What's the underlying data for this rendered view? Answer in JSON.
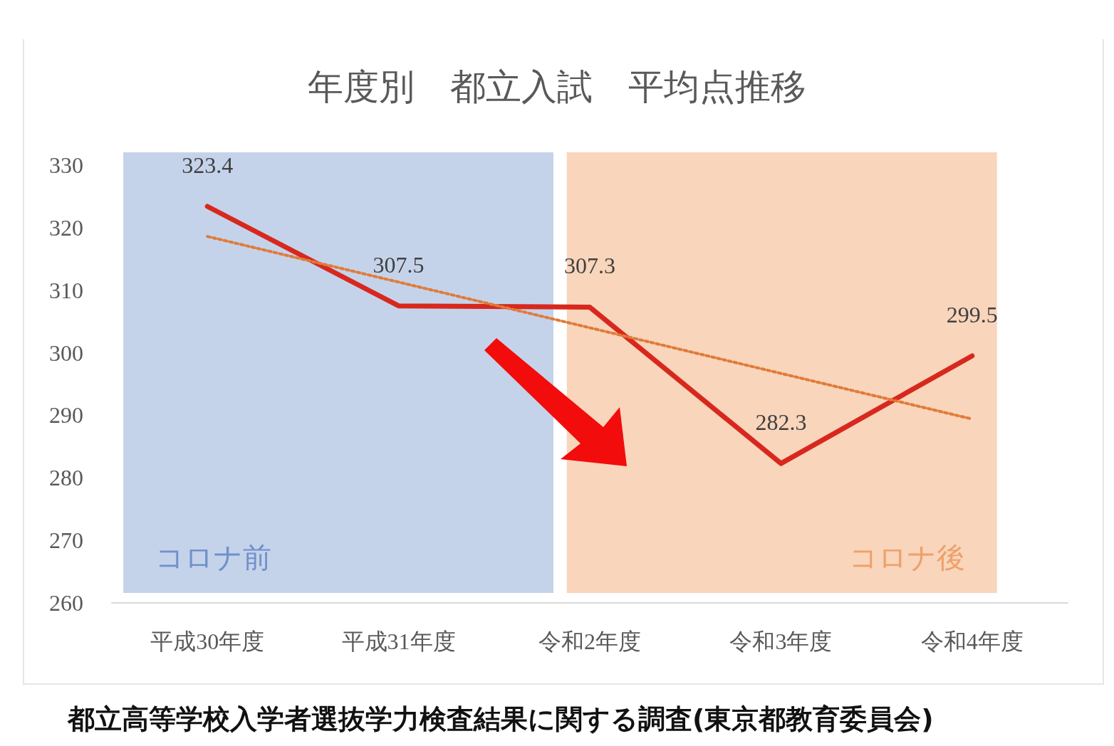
{
  "chart_data": {
    "type": "line",
    "title": "年度別　都立入試　平均点推移",
    "categories": [
      "平成30年度",
      "平成31年度",
      "令和2年度",
      "令和3年度",
      "令和4年度"
    ],
    "series": [
      {
        "color": "#d8281e",
        "values": [
          323.4,
          307.5,
          307.3,
          282.3,
          299.5
        ],
        "value_labels": [
          "323.4",
          "307.5",
          "307.3",
          "282.3",
          "299.5"
        ],
        "line_style": "solid"
      },
      {
        "type": "line",
        "color": "#e07b39",
        "x": [
          "平成30年度",
          "令和4年度"
        ],
        "values": [
          318.6,
          289.4
        ],
        "line_style": "dotted"
      }
    ],
    "ylim": [
      260,
      330
    ],
    "yticks": [
      260,
      270,
      280,
      290,
      300,
      310,
      320,
      330
    ],
    "grid": false,
    "marker": "none",
    "bands": [
      {
        "axis": "x",
        "from": "平成30年度",
        "to": "令和2年度",
        "label": "コロナ前",
        "color": "#c5d3ea"
      },
      {
        "axis": "x",
        "from": "令和2年度",
        "to": "令和4年度",
        "label": "コロナ後",
        "color": "#f8d5bb"
      }
    ],
    "annotations": [
      "都立高等学校入学者選抜学力検査結果に関する調査(東京都教育委員会)"
    ]
  }
}
